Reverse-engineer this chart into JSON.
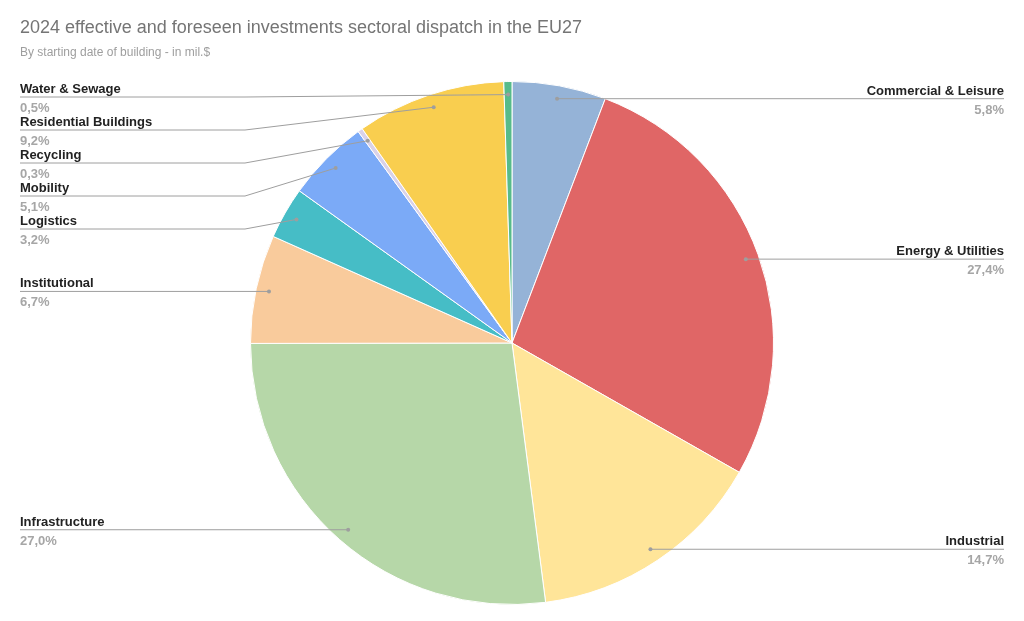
{
  "chart_data": {
    "type": "pie",
    "title": "2024 effective and foreseen investments sectoral dispatch in the EU27",
    "subtitle": "By starting date of building - in mil.$",
    "categories": [
      "Commercial & Leisure",
      "Energy & Utilities",
      "Industrial",
      "Infrastructure",
      "Institutional",
      "Logistics",
      "Mobility",
      "Recycling",
      "Residential Buildings",
      "Water & Sewage"
    ],
    "values": [
      5.8,
      27.4,
      14.7,
      27.0,
      6.7,
      3.2,
      5.1,
      0.3,
      9.2,
      0.5
    ],
    "colors": [
      "#95b3d7",
      "#e06666",
      "#ffe599",
      "#b6d7a8",
      "#f9cb9c",
      "#46bdc6",
      "#7baaf7",
      "#d9d2e9",
      "#f9ce4f",
      "#57bb8a"
    ],
    "value_labels": [
      "5,8%",
      "27,4%",
      "14,7%",
      "27,0%",
      "6,7%",
      "3,2%",
      "5,1%",
      "0,3%",
      "9,2%",
      "0,5%"
    ]
  }
}
